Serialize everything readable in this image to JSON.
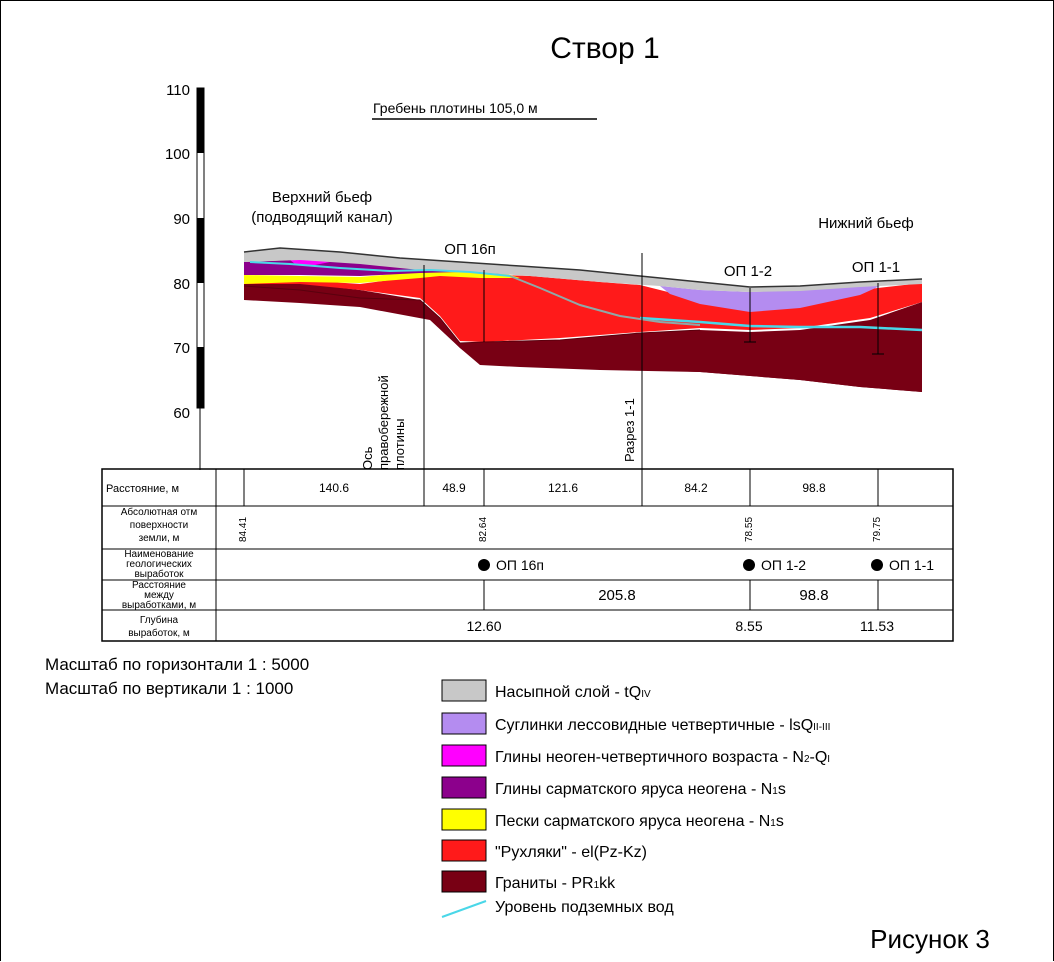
{
  "title": "Створ 1",
  "crest_label": "Гребень плотины 105,0 м",
  "upstream": [
    "Верхний бьеф",
    "(подводящий канал)"
  ],
  "downstream": "Нижний бьеф",
  "axis_ticks": [
    "110",
    "100",
    "90",
    "80",
    "70",
    "60"
  ],
  "boreholes": [
    {
      "name": "ОП 16п",
      "elevation": "82.64",
      "depth": "12.60"
    },
    {
      "name": "ОП 1-2",
      "elevation": "78.55",
      "depth": "8.55"
    },
    {
      "name": "ОП 1-1",
      "elevation": "79.75",
      "depth": "11.53"
    }
  ],
  "start_elevation": "84.41",
  "vertical_labels": {
    "dam_axis": [
      "Ось",
      "правобережной",
      "плотины"
    ],
    "section": "Разрез 1-1"
  },
  "table": {
    "row_labels": {
      "distance": "Расстояние, м",
      "elevation": [
        "Абсолютная отм",
        "поверхности",
        "земли, м"
      ],
      "names": [
        "Наименование",
        "геологических",
        "выработок"
      ],
      "between": [
        "Расстояние",
        "между",
        "выработками, м"
      ],
      "depth": [
        "Глубина",
        "выработок, м"
      ]
    },
    "distances": [
      "140.6",
      "48.9",
      "121.6",
      "84.2",
      "98.8"
    ],
    "between_values": [
      "205.8",
      "98.8"
    ]
  },
  "scales": [
    "Масштаб по горизонтали 1 : 5000",
    "Масштаб по вертикали 1 : 1000"
  ],
  "legend": [
    {
      "label": "Насыпной слой - tQ",
      "sub": "IV",
      "color": "#c8c8c8"
    },
    {
      "label": "Суглинки лессовидные четвертичные - lsQ",
      "sub": "II-III",
      "color": "#b48cf0"
    },
    {
      "label": "Глины неоген-четвертичного возраста - N",
      "sub": "2",
      "tail": "-Q",
      "tailsub": "I",
      "color": "#ff00ff"
    },
    {
      "label": "Глины сарматского яруса неогена - N",
      "sub": "1",
      "tail": "s",
      "color": "#8c008c"
    },
    {
      "label": "Пески сарматского яруса неогена - N",
      "sub": "1",
      "tail": "s",
      "color": "#ffff00"
    },
    {
      "label": "\"Рухляки\" - el(Pz-Kz)",
      "color": "#ff1a1a"
    },
    {
      "label": "Граниты - PR",
      "sub": "1",
      "tail": "kk",
      "color": "#780014"
    }
  ],
  "groundwater_label": "Уровень подземных вод",
  "groundwater_color": "#4ad7e8",
  "figure_label": "Рисунок 3"
}
